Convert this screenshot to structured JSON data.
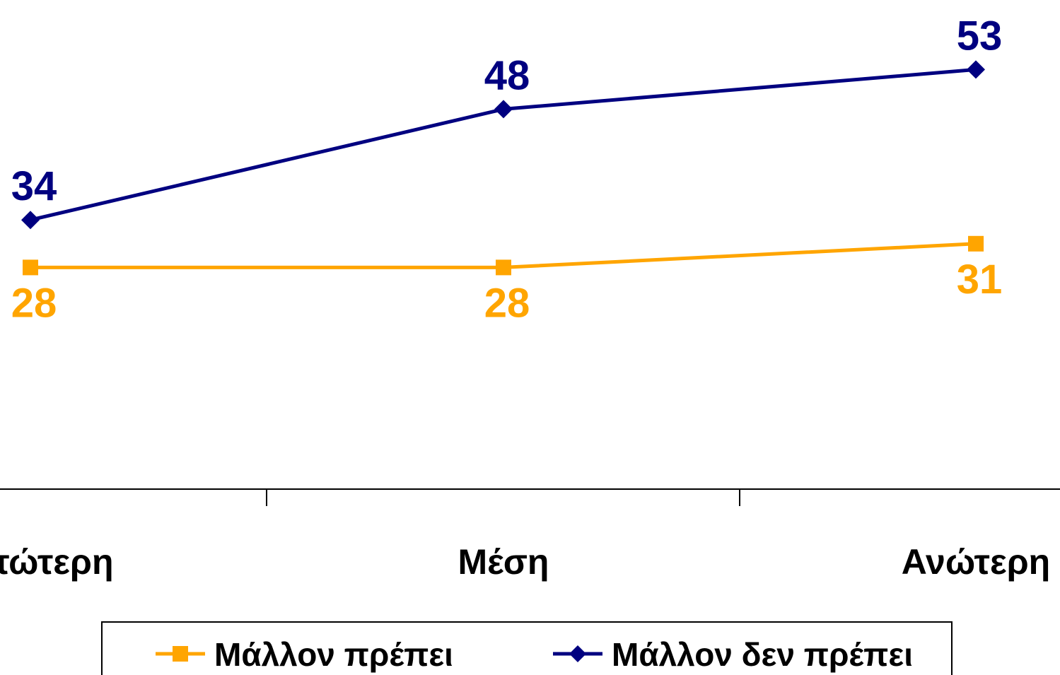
{
  "chart_data": {
    "type": "line",
    "categories": [
      "Κατώτερη",
      "Μέση",
      "Ανώτερη"
    ],
    "series": [
      {
        "name": "Μάλλον πρέπει",
        "values": [
          28,
          28,
          31
        ],
        "color": "#FFA500",
        "marker": "square",
        "label_position": "below"
      },
      {
        "name": "Μάλλον δεν πρέπει",
        "values": [
          34,
          48,
          53
        ],
        "color": "#000080",
        "marker": "diamond",
        "label_position": "above"
      }
    ],
    "title": "",
    "xlabel": "",
    "ylabel": "",
    "ylim": [
      0,
      60
    ],
    "grid": false,
    "legend": "bottom"
  }
}
